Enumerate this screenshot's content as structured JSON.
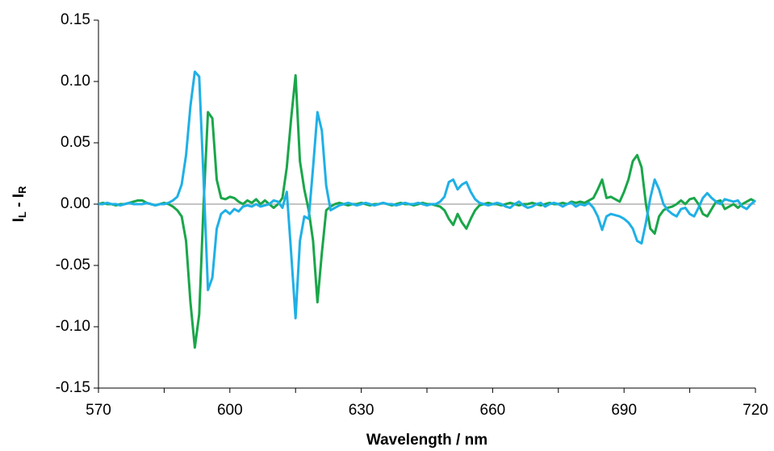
{
  "chart_data": {
    "type": "line",
    "xlabel": "Wavelength / nm",
    "ylabel": [
      "I",
      "L",
      " - I",
      "R"
    ],
    "x": [
      570,
      571,
      572,
      573,
      574,
      575,
      576,
      577,
      578,
      579,
      580,
      581,
      582,
      583,
      584,
      585,
      586,
      587,
      588,
      589,
      590,
      591,
      592,
      593,
      594,
      595,
      596,
      597,
      598,
      599,
      600,
      601,
      602,
      603,
      604,
      605,
      606,
      607,
      608,
      609,
      610,
      611,
      612,
      613,
      614,
      615,
      616,
      617,
      618,
      619,
      620,
      621,
      622,
      623,
      624,
      625,
      626,
      627,
      628,
      629,
      630,
      631,
      632,
      633,
      634,
      635,
      636,
      637,
      638,
      639,
      640,
      641,
      642,
      643,
      644,
      645,
      646,
      647,
      648,
      649,
      650,
      651,
      652,
      653,
      654,
      655,
      656,
      657,
      658,
      659,
      660,
      661,
      662,
      663,
      664,
      665,
      666,
      667,
      668,
      669,
      670,
      671,
      672,
      673,
      674,
      675,
      676,
      677,
      678,
      679,
      680,
      681,
      682,
      683,
      684,
      685,
      686,
      687,
      688,
      689,
      690,
      691,
      692,
      693,
      694,
      695,
      696,
      697,
      698,
      699,
      700,
      701,
      702,
      703,
      704,
      705,
      706,
      707,
      708,
      709,
      710,
      711,
      712,
      713,
      714,
      715,
      716,
      717,
      718,
      719,
      720
    ],
    "series": [
      {
        "color": "#1aa64a",
        "values": [
          0,
          0.001,
          0,
          0,
          -0.001,
          0,
          0,
          0.001,
          0.002,
          0.003,
          0.003,
          0.001,
          0,
          -0.001,
          0,
          0.001,
          0,
          -0.002,
          -0.005,
          -0.01,
          -0.03,
          -0.08,
          -0.117,
          -0.09,
          0,
          0.075,
          0.07,
          0.02,
          0.005,
          0.004,
          0.006,
          0.005,
          0.002,
          0,
          0.003,
          0.001,
          0.004,
          0,
          0.003,
          0,
          -0.003,
          0,
          0.005,
          0.03,
          0.07,
          0.105,
          0.035,
          0.012,
          -0.005,
          -0.03,
          -0.08,
          -0.04,
          -0.005,
          -0.002,
          0,
          0.001,
          0,
          -0.001,
          0,
          0,
          0.001,
          0,
          -0.001,
          0,
          0,
          0.001,
          0,
          -0.001,
          0,
          0.001,
          0,
          0,
          -0.001,
          0,
          0.001,
          0,
          0,
          -0.001,
          -0.002,
          -0.005,
          -0.012,
          -0.017,
          -0.008,
          -0.015,
          -0.02,
          -0.012,
          -0.005,
          -0.001,
          0,
          0.001,
          0,
          0,
          -0.001,
          0,
          0.001,
          0,
          -0.001,
          0,
          0,
          0.001,
          0,
          -0.001,
          0,
          0.001,
          0,
          0,
          0.001,
          0,
          0.002,
          0.001,
          0.002,
          0.001,
          0.003,
          0.005,
          0.012,
          0.02,
          0.005,
          0.006,
          0.004,
          0.002,
          0.01,
          0.02,
          0.035,
          0.04,
          0.03,
          0,
          -0.02,
          -0.024,
          -0.01,
          -0.005,
          -0.003,
          -0.002,
          0,
          0.003,
          0,
          0.004,
          0.005,
          0,
          -0.008,
          -0.01,
          -0.004,
          0.002,
          0.003,
          -0.004,
          -0.002,
          0,
          -0.003,
          0,
          0.002,
          0.004,
          0.002
        ]
      },
      {
        "color": "#1fb0e6",
        "values": [
          0,
          0,
          0.001,
          0,
          0,
          -0.001,
          0,
          0.001,
          0,
          0,
          0,
          0.001,
          0,
          -0.001,
          0,
          0,
          0.001,
          0.003,
          0.006,
          0.016,
          0.04,
          0.08,
          0.108,
          0.104,
          0.02,
          -0.07,
          -0.06,
          -0.02,
          -0.008,
          -0.005,
          -0.008,
          -0.004,
          -0.006,
          -0.002,
          -0.001,
          -0.002,
          0,
          -0.002,
          -0.001,
          0,
          0.003,
          0.002,
          -0.003,
          0.01,
          -0.04,
          -0.093,
          -0.03,
          -0.01,
          -0.012,
          0.03,
          0.075,
          0.06,
          0.015,
          -0.005,
          -0.003,
          -0.001,
          0,
          0.001,
          0,
          -0.001,
          0,
          0.001,
          0,
          -0.001,
          0,
          0.001,
          0,
          0,
          -0.001,
          0,
          0.001,
          0,
          0,
          0.001,
          0,
          -0.001,
          0,
          0,
          0.002,
          0.006,
          0.018,
          0.02,
          0.012,
          0.016,
          0.018,
          0.01,
          0.004,
          0.001,
          0,
          -0.001,
          0,
          0.001,
          0,
          -0.002,
          -0.003,
          0,
          0.002,
          -0.001,
          -0.003,
          -0.002,
          0,
          0.001,
          -0.002,
          0,
          0.001,
          0,
          -0.002,
          0,
          0.001,
          -0.002,
          0,
          -0.001,
          0.001,
          -0.003,
          -0.01,
          -0.021,
          -0.01,
          -0.008,
          -0.009,
          -0.01,
          -0.012,
          -0.015,
          -0.02,
          -0.03,
          -0.032,
          -0.015,
          0.005,
          0.02,
          0.012,
          0,
          -0.005,
          -0.008,
          -0.01,
          -0.004,
          -0.003,
          -0.008,
          -0.01,
          -0.003,
          0.005,
          0.009,
          0.005,
          0.002,
          0,
          0.004,
          0.003,
          0.002,
          0.003,
          -0.002,
          -0.004,
          0,
          0.003
        ]
      }
    ],
    "xlim": [
      570,
      720
    ],
    "xticks": [
      570,
      600,
      630,
      660,
      690,
      720
    ],
    "xminorticks": [
      585,
      615,
      645,
      675,
      705
    ],
    "ylim": [
      -0.15,
      0.15
    ],
    "yticks": [
      -0.15,
      {
        "value": -0.1,
        "label": "-0.10"
      },
      -0.05,
      {
        "value": 0,
        "label": "0.00"
      },
      0.05,
      {
        "value": 0.1,
        "label": "0.10"
      },
      0.15
    ],
    "zero_line": true
  }
}
